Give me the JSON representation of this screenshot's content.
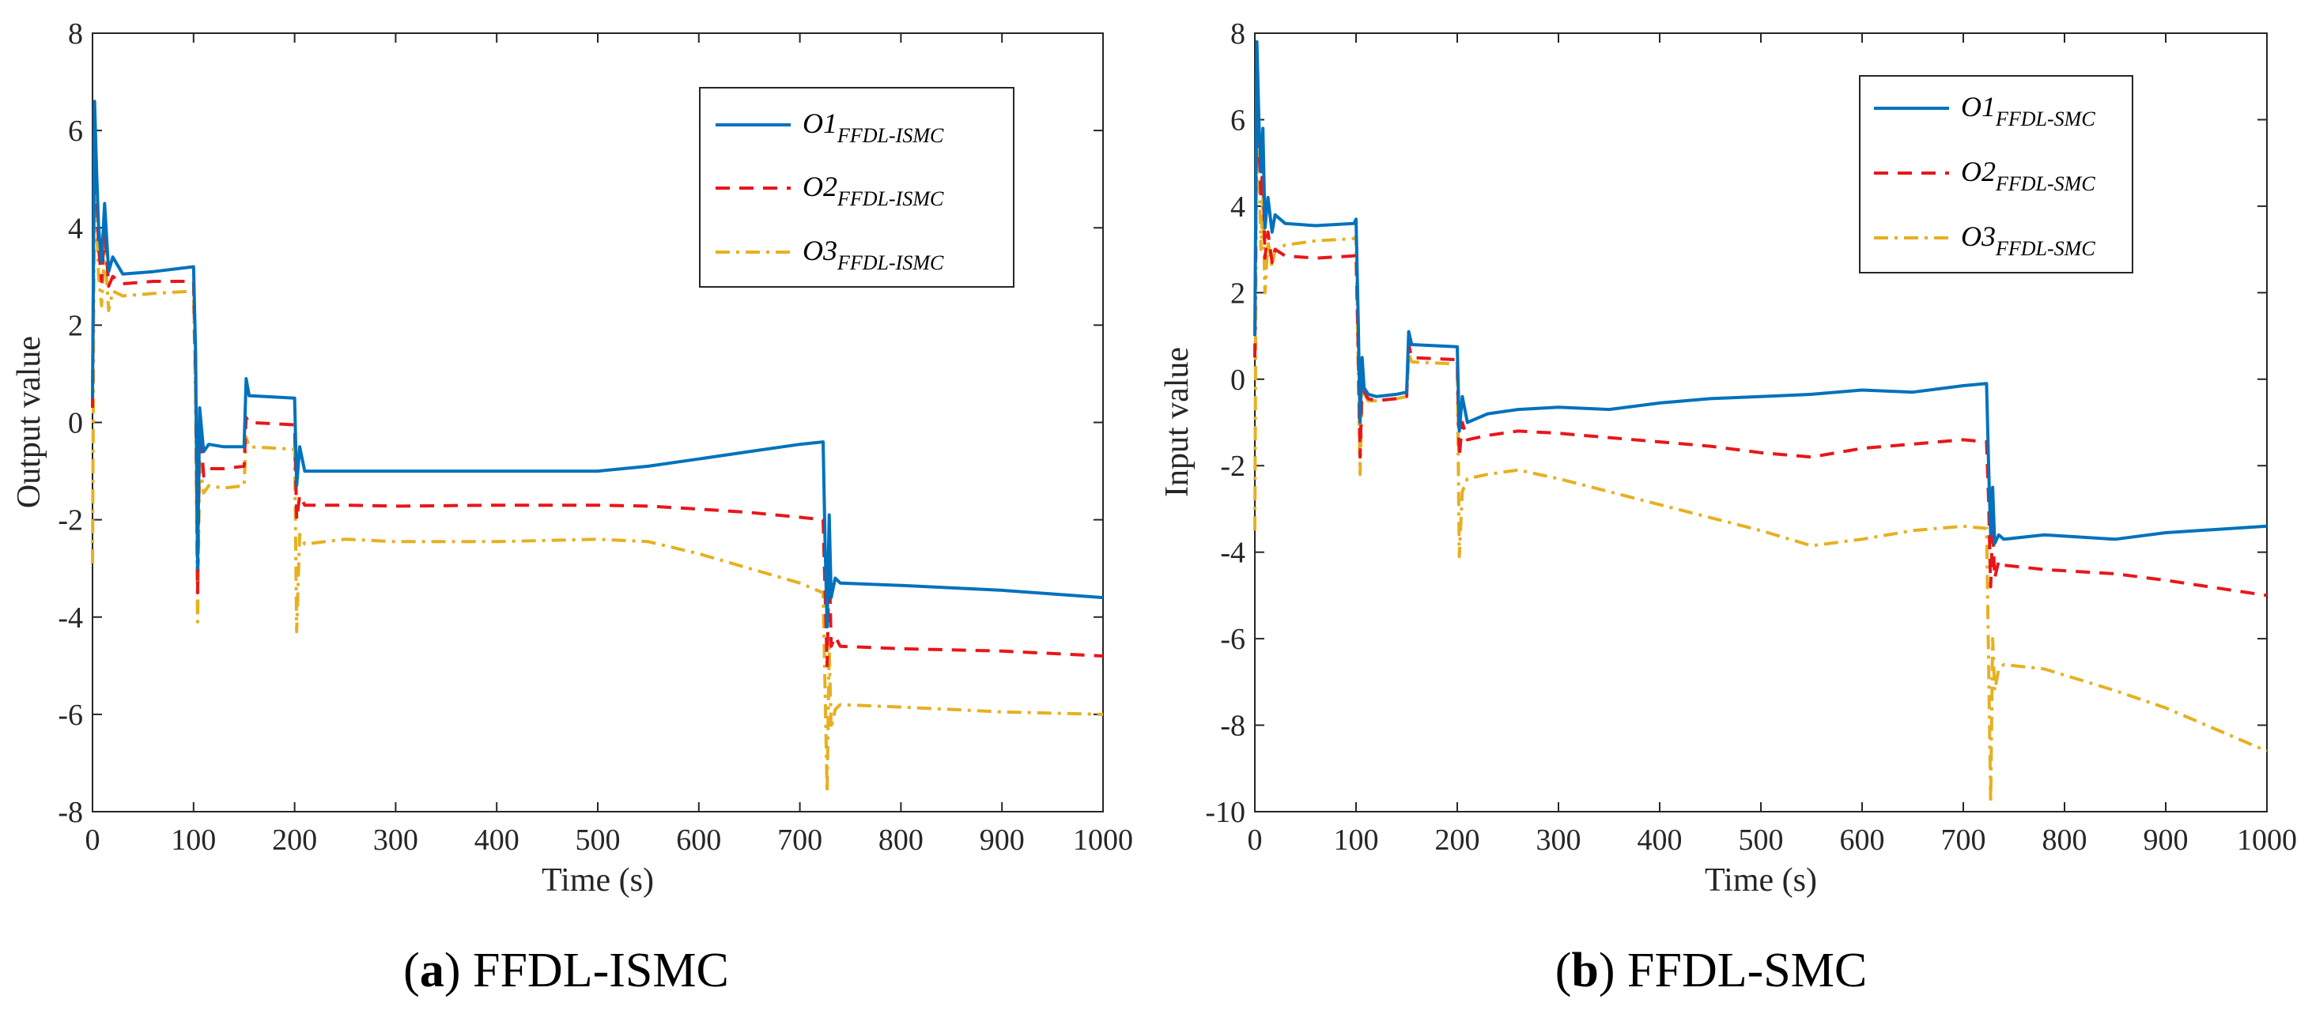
{
  "colors": {
    "o1": "#0072BD",
    "o2": "#E8161B",
    "o3": "#E6B020",
    "axis": "#262626"
  },
  "chart_data": [
    {
      "type": "line",
      "panel_label": "a",
      "caption": "FFDL-ISMC",
      "xlabel": "Time  (s)",
      "ylabel": "Output value",
      "xlim": [
        0,
        1000
      ],
      "ylim": [
        -8,
        8
      ],
      "xticks": [
        "0",
        "100",
        "200",
        "300",
        "400",
        "500",
        "600",
        "700",
        "800",
        "900",
        "1000"
      ],
      "yticks": [
        "-8",
        "-6",
        "-4",
        "-2",
        "0",
        "2",
        "4",
        "6",
        "8"
      ],
      "legend_position": "top-right",
      "series": [
        {
          "name": "O1",
          "subscript": "FFDL-ISMC",
          "style": "solid",
          "x": [
            0,
            2,
            4,
            6,
            9,
            12,
            16,
            20,
            30,
            60,
            100,
            102,
            104,
            106,
            110,
            115,
            130,
            150,
            152,
            155,
            200,
            202,
            205,
            210,
            250,
            300,
            400,
            500,
            550,
            600,
            650,
            700,
            723,
            725,
            727,
            729,
            731,
            735,
            740,
            800,
            900,
            1000
          ],
          "y": [
            0.5,
            6.6,
            5.2,
            4.0,
            3.3,
            4.5,
            3.1,
            3.4,
            3.05,
            3.1,
            3.2,
            1.4,
            -3.0,
            0.3,
            -0.6,
            -0.45,
            -0.5,
            -0.5,
            0.9,
            0.55,
            0.5,
            -1.3,
            -0.5,
            -1.0,
            -1.0,
            -1.0,
            -1.0,
            -1.0,
            -0.9,
            -0.75,
            -0.6,
            -0.45,
            -0.4,
            -2.5,
            -4.2,
            -1.9,
            -3.6,
            -3.2,
            -3.3,
            -3.35,
            -3.45,
            -3.6
          ]
        },
        {
          "name": "O2",
          "subscript": "FFDL-ISMC",
          "style": "dashed",
          "x": [
            0,
            2,
            4,
            6,
            9,
            12,
            16,
            20,
            30,
            60,
            100,
            102,
            104,
            106,
            110,
            115,
            130,
            150,
            152,
            155,
            200,
            202,
            205,
            210,
            250,
            300,
            400,
            500,
            550,
            600,
            650,
            700,
            723,
            725,
            727,
            729,
            731,
            735,
            740,
            800,
            900,
            1000
          ],
          "y": [
            0.3,
            6.3,
            4.8,
            3.6,
            2.9,
            4.0,
            2.8,
            3.0,
            2.85,
            2.9,
            2.9,
            1.0,
            -3.5,
            0.0,
            -1.1,
            -0.95,
            -0.95,
            -0.9,
            0.1,
            0.0,
            -0.05,
            -2.0,
            -1.5,
            -1.7,
            -1.7,
            -1.72,
            -1.7,
            -1.7,
            -1.72,
            -1.78,
            -1.85,
            -1.95,
            -2.0,
            -3.5,
            -5.0,
            -2.8,
            -4.6,
            -4.4,
            -4.6,
            -4.65,
            -4.7,
            -4.8
          ]
        },
        {
          "name": "O3",
          "subscript": "FFDL-ISMC",
          "style": "dashdot",
          "x": [
            0,
            2,
            4,
            6,
            9,
            12,
            16,
            20,
            30,
            60,
            100,
            102,
            104,
            106,
            110,
            115,
            130,
            150,
            152,
            155,
            200,
            202,
            205,
            210,
            250,
            300,
            400,
            500,
            550,
            600,
            650,
            700,
            723,
            725,
            727,
            729,
            731,
            735,
            740,
            800,
            900,
            1000
          ],
          "y": [
            -2.9,
            6.0,
            4.2,
            3.0,
            2.4,
            3.6,
            2.3,
            2.7,
            2.6,
            2.65,
            2.7,
            0.4,
            -4.1,
            -0.8,
            -1.45,
            -1.3,
            -1.35,
            -1.3,
            -0.3,
            -0.5,
            -0.55,
            -4.3,
            -2.3,
            -2.5,
            -2.4,
            -2.45,
            -2.45,
            -2.4,
            -2.45,
            -2.7,
            -3.0,
            -3.3,
            -3.5,
            -5.5,
            -7.6,
            -4.6,
            -6.3,
            -5.9,
            -5.8,
            -5.85,
            -5.95,
            -6.0
          ]
        }
      ]
    },
    {
      "type": "line",
      "panel_label": "b",
      "caption": "FFDL-SMC",
      "xlabel": "Time  (s)",
      "ylabel": "Input value",
      "xlim": [
        0,
        1000
      ],
      "ylim": [
        -10,
        8
      ],
      "xticks": [
        "0",
        "100",
        "200",
        "300",
        "400",
        "500",
        "600",
        "700",
        "800",
        "900",
        "1000"
      ],
      "yticks": [
        "-10",
        "-8",
        "-6",
        "-4",
        "-2",
        "0",
        "2",
        "4",
        "6",
        "8"
      ],
      "legend_position": "top-right",
      "series": [
        {
          "name": "O1",
          "subscript": "FFDL-SMC",
          "style": "solid",
          "x": [
            0,
            2,
            4,
            6,
            8,
            10,
            13,
            17,
            20,
            30,
            60,
            98,
            100,
            102,
            104,
            106,
            108,
            112,
            120,
            140,
            150,
            152,
            155,
            200,
            202,
            205,
            210,
            230,
            260,
            300,
            350,
            400,
            450,
            500,
            550,
            600,
            650,
            700,
            723,
            725,
            727,
            729,
            731,
            735,
            740,
            780,
            850,
            900,
            1000
          ],
          "y": [
            1.0,
            7.8,
            6.0,
            4.8,
            5.8,
            3.5,
            4.2,
            3.4,
            3.8,
            3.6,
            3.55,
            3.6,
            3.7,
            1.5,
            -1.0,
            0.5,
            -0.2,
            -0.35,
            -0.4,
            -0.35,
            -0.3,
            1.1,
            0.8,
            0.75,
            -1.2,
            -0.4,
            -1.0,
            -0.8,
            -0.7,
            -0.65,
            -0.7,
            -0.55,
            -0.45,
            -0.4,
            -0.35,
            -0.25,
            -0.3,
            -0.15,
            -0.1,
            -2.0,
            -3.6,
            -2.5,
            -3.8,
            -3.6,
            -3.7,
            -3.6,
            -3.7,
            -3.55,
            -3.4
          ]
        },
        {
          "name": "O2",
          "subscript": "FFDL-SMC",
          "style": "dashed",
          "x": [
            0,
            2,
            4,
            6,
            8,
            10,
            13,
            17,
            20,
            30,
            60,
            98,
            100,
            102,
            104,
            106,
            108,
            112,
            120,
            140,
            150,
            152,
            155,
            200,
            202,
            205,
            210,
            230,
            260,
            300,
            350,
            400,
            450,
            500,
            550,
            600,
            650,
            700,
            723,
            725,
            727,
            729,
            731,
            735,
            740,
            780,
            850,
            900,
            1000
          ],
          "y": [
            0.5,
            7.2,
            5.5,
            4.2,
            5.0,
            2.8,
            3.4,
            2.7,
            3.0,
            2.85,
            2.8,
            2.85,
            2.9,
            0.8,
            -1.8,
            0.0,
            -0.3,
            -0.45,
            -0.5,
            -0.45,
            -0.4,
            0.8,
            0.5,
            0.45,
            -1.8,
            -1.0,
            -1.4,
            -1.3,
            -1.2,
            -1.25,
            -1.35,
            -1.45,
            -1.55,
            -1.7,
            -1.8,
            -1.6,
            -1.5,
            -1.4,
            -1.45,
            -2.8,
            -4.8,
            -3.4,
            -4.6,
            -4.2,
            -4.3,
            -4.4,
            -4.5,
            -4.65,
            -5.0
          ]
        },
        {
          "name": "O3",
          "subscript": "FFDL-SMC",
          "style": "dashdot",
          "x": [
            0,
            2,
            4,
            6,
            8,
            10,
            13,
            17,
            20,
            30,
            60,
            98,
            100,
            102,
            104,
            106,
            108,
            112,
            120,
            140,
            150,
            152,
            155,
            200,
            202,
            205,
            210,
            230,
            260,
            300,
            350,
            400,
            450,
            500,
            550,
            600,
            650,
            700,
            723,
            725,
            727,
            729,
            731,
            735,
            740,
            780,
            850,
            900,
            1000
          ],
          "y": [
            -3.5,
            7.5,
            5.2,
            3.0,
            4.2,
            2.0,
            3.2,
            2.6,
            3.0,
            3.1,
            3.2,
            3.25,
            3.3,
            0.4,
            -2.2,
            -0.3,
            -0.35,
            -0.5,
            -0.5,
            -0.45,
            -0.4,
            0.6,
            0.4,
            0.35,
            -4.1,
            -2.6,
            -2.3,
            -2.2,
            -2.1,
            -2.3,
            -2.6,
            -2.9,
            -3.2,
            -3.5,
            -3.85,
            -3.7,
            -3.5,
            -3.4,
            -3.45,
            -6.5,
            -9.8,
            -6.0,
            -7.2,
            -6.7,
            -6.6,
            -6.7,
            -7.2,
            -7.6,
            -8.6
          ]
        }
      ]
    }
  ]
}
